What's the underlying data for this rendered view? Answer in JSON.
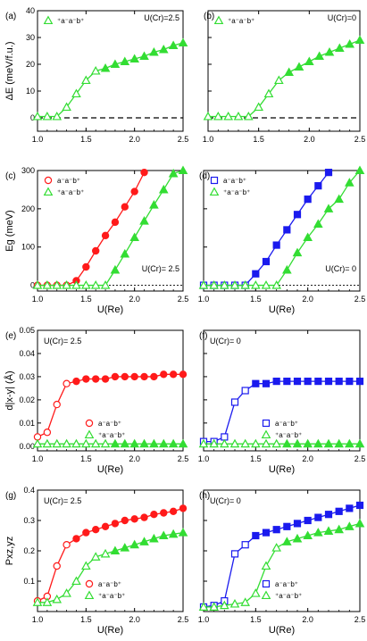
{
  "colors": {
    "red": "#ff1a1a",
    "green": "#33dd33",
    "blue": "#1a1aee"
  },
  "chart_data": [
    {
      "panel": "(a)",
      "type": "line",
      "ylabel": "ΔE (meV/f.u.)",
      "xlabel": "",
      "xlim": [
        1.0,
        2.5
      ],
      "ylim": [
        -5,
        40
      ],
      "xticks": [
        "1.0",
        "1.5",
        "2.0",
        "2.5"
      ],
      "yticks": [
        "0",
        "10",
        "20",
        "30",
        "40"
      ],
      "annotation": "U(Cr)=2.5",
      "legend_position": "top-left",
      "hline": {
        "y": 0,
        "style": "dashed"
      },
      "series": [
        {
          "name": "⁺a⁻a⁻b⁺",
          "color": "green",
          "marker": "triangle",
          "x": [
            1.0,
            1.1,
            1.2,
            1.3,
            1.4,
            1.5,
            1.6,
            1.7,
            1.8,
            1.9,
            2.0,
            2.1,
            2.2,
            2.3,
            2.4,
            2.5
          ],
          "y": [
            0.5,
            0.5,
            0.5,
            4,
            9,
            14,
            17.5,
            18.5,
            20,
            21,
            22,
            23,
            24.5,
            25.5,
            27,
            28
          ],
          "hollow": [
            true,
            true,
            true,
            true,
            true,
            true,
            true,
            false,
            false,
            false,
            false,
            false,
            false,
            false,
            false,
            false
          ]
        }
      ]
    },
    {
      "panel": "(b)",
      "type": "line",
      "xlabel": "",
      "ylabel": "",
      "xlim": [
        1.0,
        2.5
      ],
      "ylim": [
        -5,
        40
      ],
      "xticks": [
        "1.0",
        "1.5",
        "2.0",
        "2.5"
      ],
      "yticks": [],
      "annotation": "U(Cr)=0",
      "legend_position": "top-left",
      "hline": {
        "y": 0,
        "style": "dashed"
      },
      "series": [
        {
          "name": "⁺a⁻a⁻b⁺",
          "color": "green",
          "marker": "triangle",
          "x": [
            1.0,
            1.1,
            1.2,
            1.3,
            1.4,
            1.5,
            1.6,
            1.7,
            1.8,
            1.9,
            2.0,
            2.1,
            2.2,
            2.3,
            2.4,
            2.5
          ],
          "y": [
            0.5,
            0.5,
            0.5,
            0.5,
            0.5,
            4,
            9,
            14,
            17,
            19,
            21,
            23,
            24.5,
            26,
            27.5,
            29
          ],
          "hollow": [
            true,
            true,
            true,
            true,
            true,
            true,
            true,
            true,
            false,
            false,
            false,
            false,
            false,
            false,
            false,
            false
          ]
        }
      ]
    },
    {
      "panel": "(c)",
      "type": "line",
      "ylabel": "Eg (meV)",
      "xlabel": "U(Re)",
      "xlim": [
        1.0,
        2.5
      ],
      "ylim": [
        -15,
        300
      ],
      "xticks": [
        "1.0",
        "1.5",
        "2.0",
        "2.5"
      ],
      "yticks": [
        "0",
        "100",
        "200",
        "300"
      ],
      "annotation": "U(Cr)= 2.5",
      "legend_position": "top-left",
      "hline": {
        "y": 0,
        "style": "dotted"
      },
      "series": [
        {
          "name": "a⁻a⁻b⁺",
          "color": "red",
          "marker": "circle",
          "x": [
            1.0,
            1.1,
            1.2,
            1.3,
            1.4,
            1.5,
            1.6,
            1.7,
            1.8,
            1.9,
            2.0,
            2.1
          ],
          "y": [
            0,
            0,
            0,
            0,
            12,
            48,
            90,
            130,
            165,
            205,
            245,
            295
          ],
          "hollow": [
            true,
            true,
            true,
            true,
            false,
            false,
            false,
            false,
            false,
            false,
            false,
            false
          ]
        },
        {
          "name": "⁺a⁻a⁻b⁺",
          "color": "green",
          "marker": "triangle",
          "x": [
            1.0,
            1.1,
            1.2,
            1.3,
            1.4,
            1.5,
            1.6,
            1.7,
            1.8,
            1.9,
            2.0,
            2.1,
            2.2,
            2.3,
            2.4,
            2.5
          ],
          "y": [
            0,
            0,
            0,
            0,
            0,
            0,
            0,
            0,
            40,
            82,
            125,
            168,
            210,
            250,
            292,
            300
          ],
          "hollow": [
            true,
            true,
            true,
            true,
            true,
            true,
            true,
            true,
            false,
            false,
            false,
            false,
            false,
            false,
            false,
            false
          ]
        }
      ]
    },
    {
      "panel": "(d)",
      "type": "line",
      "xlabel": "U(Re)",
      "ylabel": "",
      "xlim": [
        1.0,
        2.5
      ],
      "ylim": [
        -15,
        300
      ],
      "xticks": [
        "1.0",
        "1.5",
        "2.0",
        "2.5"
      ],
      "yticks": [],
      "annotation": "U(Cr)= 0",
      "legend_position": "top-left",
      "hline": {
        "y": 0,
        "style": "dotted"
      },
      "series": [
        {
          "name": "a⁻a⁻b⁺",
          "color": "blue",
          "marker": "square",
          "x": [
            1.0,
            1.1,
            1.2,
            1.3,
            1.4,
            1.5,
            1.6,
            1.7,
            1.8,
            1.9,
            2.0,
            2.1,
            2.2
          ],
          "y": [
            0,
            0,
            0,
            0,
            0,
            30,
            62,
            105,
            145,
            185,
            225,
            260,
            295
          ],
          "hollow": [
            true,
            true,
            true,
            true,
            true,
            false,
            false,
            false,
            false,
            false,
            false,
            false,
            false
          ]
        },
        {
          "name": "⁺a⁻a⁻b⁺",
          "color": "green",
          "marker": "triangle",
          "x": [
            1.0,
            1.1,
            1.2,
            1.3,
            1.4,
            1.5,
            1.6,
            1.7,
            1.8,
            1.9,
            2.0,
            2.1,
            2.2,
            2.3,
            2.4,
            2.5
          ],
          "y": [
            0,
            0,
            0,
            0,
            0,
            0,
            0,
            0,
            40,
            85,
            125,
            160,
            200,
            225,
            268,
            300
          ],
          "hollow": [
            true,
            true,
            true,
            true,
            true,
            true,
            true,
            true,
            false,
            false,
            false,
            false,
            false,
            false,
            false,
            false
          ]
        }
      ]
    },
    {
      "panel": "(e)",
      "type": "line",
      "ylabel": "d|x-y| (Å)",
      "xlabel": "U(Re)",
      "xlim": [
        1.0,
        2.5
      ],
      "ylim": [
        -0.002,
        0.05
      ],
      "xticks": [
        "1.0",
        "1.5",
        "2.0",
        "2.5"
      ],
      "yticks": [
        "0.00",
        "0.01",
        "0.02",
        "0.03",
        "0.04",
        "0.05"
      ],
      "annotation": "U(Cr)= 2.5",
      "legend_position": "bottom-right",
      "series": [
        {
          "name": "a⁻a⁻b⁺",
          "color": "red",
          "marker": "circle",
          "x": [
            1.0,
            1.1,
            1.2,
            1.3,
            1.4,
            1.5,
            1.6,
            1.7,
            1.8,
            1.9,
            2.0,
            2.1,
            2.2,
            2.3,
            2.4,
            2.5
          ],
          "y": [
            0.004,
            0.006,
            0.018,
            0.027,
            0.028,
            0.029,
            0.029,
            0.029,
            0.03,
            0.03,
            0.03,
            0.03,
            0.03,
            0.031,
            0.031,
            0.031
          ],
          "hollow": [
            true,
            true,
            true,
            true,
            false,
            false,
            false,
            false,
            false,
            false,
            false,
            false,
            false,
            false,
            false,
            false
          ]
        },
        {
          "name": "⁺a⁻a⁻b⁺",
          "color": "green",
          "marker": "triangle",
          "x": [
            1.0,
            1.1,
            1.2,
            1.3,
            1.4,
            1.5,
            1.6,
            1.7,
            1.8,
            1.9,
            2.0,
            2.1,
            2.2,
            2.3,
            2.4,
            2.5
          ],
          "y": [
            0.001,
            0.001,
            0.001,
            0.001,
            0.001,
            0.001,
            0.001,
            0.001,
            0.001,
            0.001,
            0.001,
            0.001,
            0.001,
            0.001,
            0.001,
            0.001
          ],
          "hollow": [
            true,
            true,
            true,
            true,
            true,
            true,
            true,
            true,
            false,
            false,
            false,
            false,
            false,
            false,
            false,
            false
          ]
        }
      ]
    },
    {
      "panel": "(f)",
      "type": "line",
      "xlabel": "U(Re)",
      "ylabel": "",
      "xlim": [
        1.0,
        2.5
      ],
      "ylim": [
        -0.002,
        0.05
      ],
      "xticks": [
        "1.0",
        "1.5",
        "2.0",
        "2.5"
      ],
      "yticks": [],
      "annotation": "U(Cr)= 0",
      "legend_position": "bottom-right",
      "series": [
        {
          "name": "a⁻a⁻b⁺",
          "color": "blue",
          "marker": "square",
          "x": [
            1.0,
            1.1,
            1.2,
            1.3,
            1.4,
            1.5,
            1.6,
            1.7,
            1.8,
            1.9,
            2.0,
            2.1,
            2.2,
            2.3,
            2.4,
            2.5
          ],
          "y": [
            0.002,
            0.002,
            0.004,
            0.019,
            0.024,
            0.027,
            0.027,
            0.028,
            0.028,
            0.028,
            0.028,
            0.028,
            0.028,
            0.028,
            0.028,
            0.028
          ],
          "hollow": [
            true,
            true,
            true,
            true,
            true,
            false,
            false,
            false,
            false,
            false,
            false,
            false,
            false,
            false,
            false,
            false
          ]
        },
        {
          "name": "⁺a⁻a⁻b⁺",
          "color": "green",
          "marker": "triangle",
          "x": [
            1.0,
            1.1,
            1.2,
            1.3,
            1.4,
            1.5,
            1.6,
            1.7,
            1.8,
            1.9,
            2.0,
            2.1,
            2.2,
            2.3,
            2.4,
            2.5
          ],
          "y": [
            0.001,
            0.001,
            0.001,
            0.001,
            0.001,
            0.001,
            0.001,
            0.001,
            0.001,
            0.001,
            0.001,
            0.001,
            0.001,
            0.001,
            0.001,
            0.001
          ],
          "hollow": [
            true,
            true,
            true,
            true,
            true,
            true,
            true,
            true,
            false,
            false,
            false,
            false,
            false,
            false,
            false,
            false
          ]
        }
      ]
    },
    {
      "panel": "(g)",
      "type": "line",
      "ylabel": "Pxz,yz",
      "xlabel": "U(Re)",
      "xlim": [
        1.0,
        2.5
      ],
      "ylim": [
        0,
        0.4
      ],
      "xticks": [
        "1.0",
        "1.5",
        "2.0",
        "2.5"
      ],
      "yticks": [
        "0.1",
        "0.2",
        "0.3",
        "0.4"
      ],
      "annotation": "U(Cr)= 2.5",
      "legend_position": "bottom-right",
      "series": [
        {
          "name": "a⁻a⁻b⁺",
          "color": "red",
          "marker": "circle",
          "x": [
            1.0,
            1.1,
            1.2,
            1.3,
            1.4,
            1.5,
            1.6,
            1.7,
            1.8,
            1.9,
            2.0,
            2.1,
            2.2,
            2.3,
            2.4,
            2.5
          ],
          "y": [
            0.035,
            0.05,
            0.15,
            0.22,
            0.24,
            0.26,
            0.27,
            0.28,
            0.29,
            0.3,
            0.305,
            0.31,
            0.32,
            0.325,
            0.33,
            0.34
          ],
          "hollow": [
            true,
            true,
            true,
            true,
            false,
            false,
            false,
            false,
            false,
            false,
            false,
            false,
            false,
            false,
            false,
            false
          ]
        },
        {
          "name": "⁺a⁻a⁻b⁺",
          "color": "green",
          "marker": "triangle",
          "x": [
            1.0,
            1.1,
            1.2,
            1.3,
            1.4,
            1.5,
            1.6,
            1.7,
            1.8,
            1.9,
            2.0,
            2.1,
            2.2,
            2.3,
            2.4,
            2.5
          ],
          "y": [
            0.03,
            0.03,
            0.04,
            0.06,
            0.1,
            0.15,
            0.18,
            0.19,
            0.2,
            0.21,
            0.22,
            0.23,
            0.24,
            0.25,
            0.255,
            0.26
          ],
          "hollow": [
            true,
            true,
            true,
            true,
            true,
            true,
            true,
            true,
            false,
            false,
            false,
            false,
            false,
            false,
            false,
            false
          ]
        }
      ]
    },
    {
      "panel": "(h)",
      "type": "line",
      "xlabel": "U(Re)",
      "ylabel": "",
      "xlim": [
        1.0,
        2.5
      ],
      "ylim": [
        0,
        0.4
      ],
      "xticks": [
        "1.0",
        "1.5",
        "2.0",
        "2.5"
      ],
      "yticks": [],
      "annotation": "U(Cr)= 0",
      "legend_position": "bottom-right",
      "series": [
        {
          "name": "a⁻a⁻b⁺",
          "color": "blue",
          "marker": "square",
          "x": [
            1.0,
            1.1,
            1.2,
            1.3,
            1.4,
            1.5,
            1.6,
            1.7,
            1.8,
            1.9,
            2.0,
            2.1,
            2.2,
            2.3,
            2.4,
            2.5
          ],
          "y": [
            0.015,
            0.02,
            0.035,
            0.19,
            0.22,
            0.25,
            0.26,
            0.27,
            0.28,
            0.29,
            0.3,
            0.31,
            0.32,
            0.33,
            0.34,
            0.35
          ],
          "hollow": [
            true,
            true,
            true,
            true,
            true,
            false,
            false,
            false,
            false,
            false,
            false,
            false,
            false,
            false,
            false,
            false
          ]
        },
        {
          "name": "⁺a⁻a⁻b⁺",
          "color": "green",
          "marker": "triangle",
          "x": [
            1.0,
            1.1,
            1.2,
            1.3,
            1.4,
            1.5,
            1.6,
            1.7,
            1.8,
            1.9,
            2.0,
            2.1,
            2.2,
            2.3,
            2.4,
            2.5
          ],
          "y": [
            0.015,
            0.015,
            0.02,
            0.025,
            0.03,
            0.06,
            0.15,
            0.21,
            0.23,
            0.24,
            0.25,
            0.26,
            0.265,
            0.27,
            0.28,
            0.29
          ],
          "hollow": [
            true,
            true,
            true,
            true,
            true,
            true,
            true,
            true,
            false,
            false,
            false,
            false,
            false,
            false,
            false,
            false
          ]
        }
      ]
    }
  ]
}
